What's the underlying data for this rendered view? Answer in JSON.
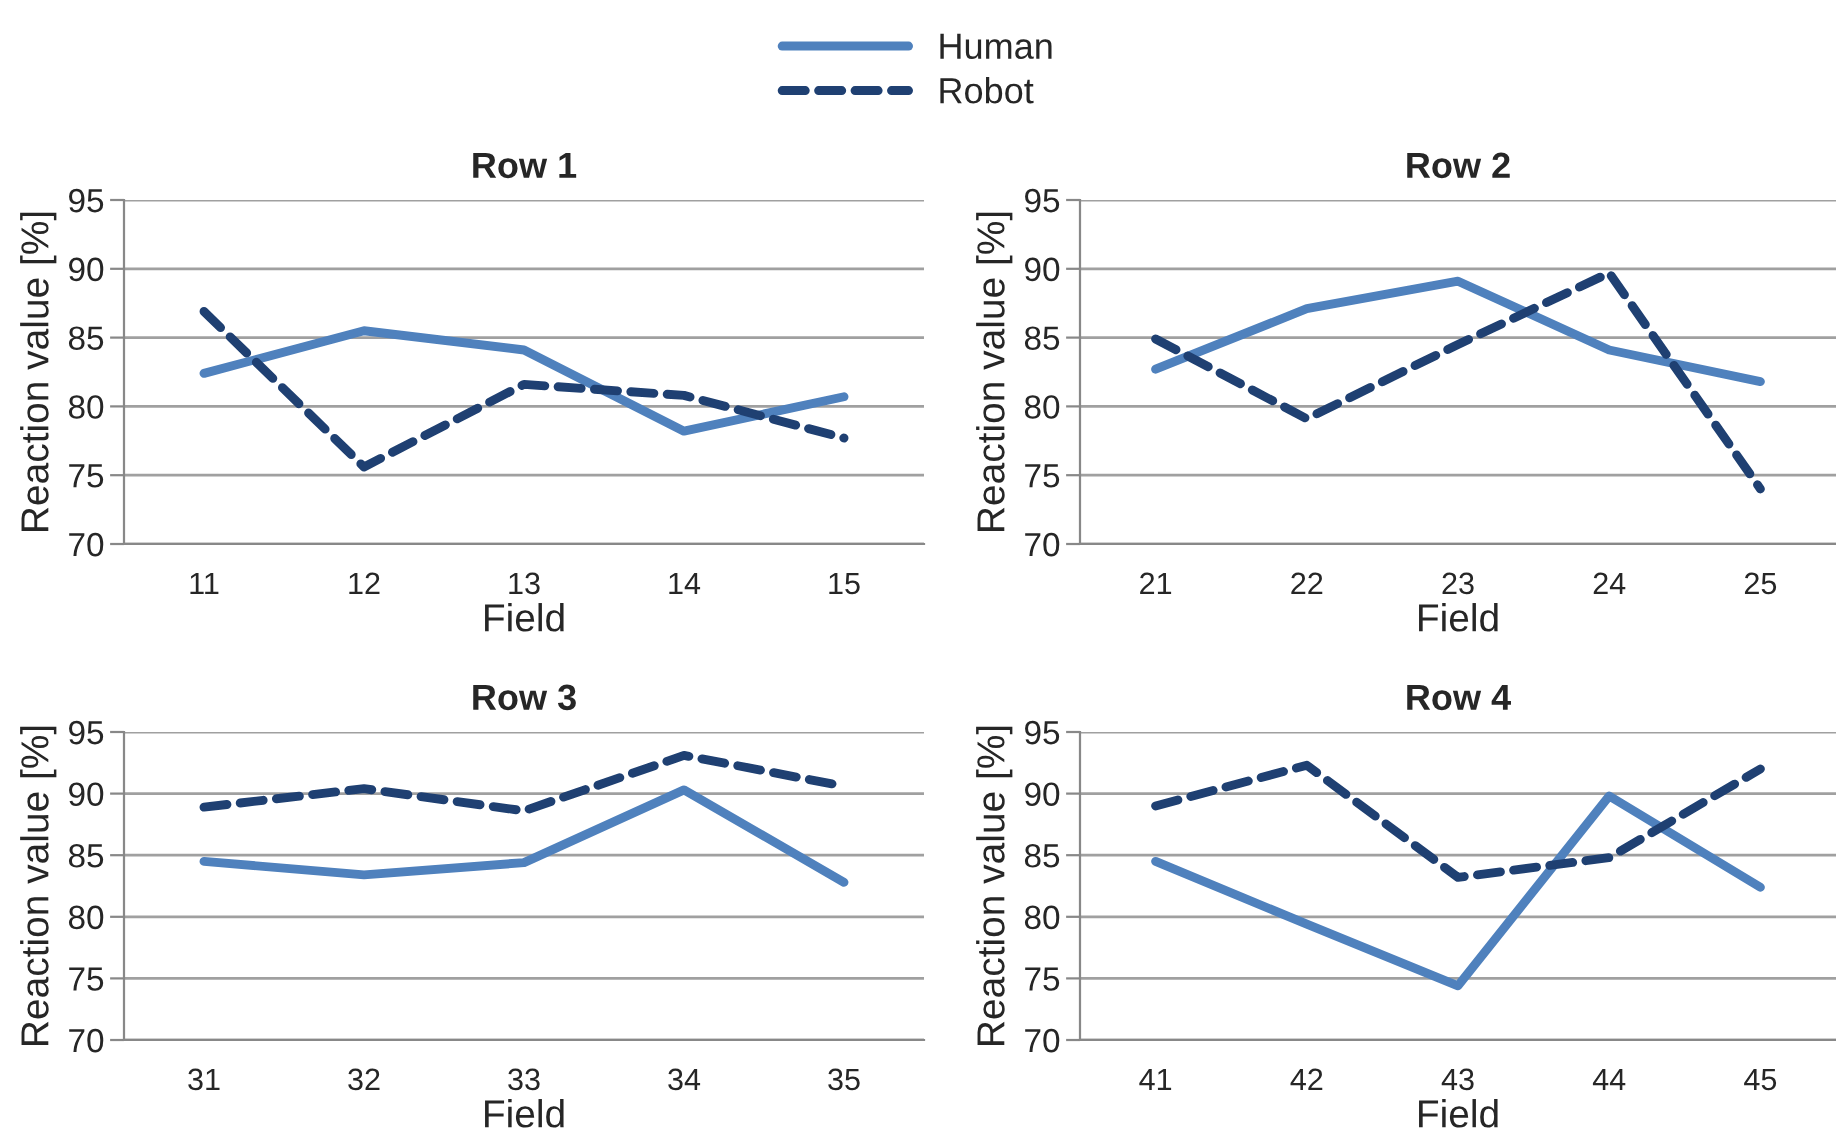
{
  "chart_data": [
    {
      "type": "line",
      "title": "Row 1",
      "xlabel": "Field",
      "ylabel": "Reaction value [%]",
      "categories": [
        "11",
        "12",
        "13",
        "14",
        "15"
      ],
      "series": [
        {
          "name": "Human",
          "color": "#4f81bd",
          "line_style": "solid",
          "values": [
            82.4,
            85.5,
            84.1,
            78.2,
            80.7
          ]
        },
        {
          "name": "Robot",
          "color": "#1f4072",
          "line_style": "dashed",
          "values": [
            86.9,
            75.6,
            81.6,
            80.8,
            77.7
          ]
        }
      ],
      "ylim": [
        70,
        95
      ],
      "yticks": [
        70,
        75,
        80,
        85,
        90,
        95
      ],
      "grid": "y",
      "legend": "top",
      "marker": "none"
    },
    {
      "type": "line",
      "title": "Row 2",
      "xlabel": "Field",
      "ylabel": "Reaction value [%]",
      "categories": [
        "21",
        "22",
        "23",
        "24",
        "25"
      ],
      "series": [
        {
          "color": "#4f81bd",
          "line_style": "solid",
          "values": [
            82.7,
            87.1,
            89.1,
            84.1,
            81.8
          ]
        },
        {
          "color": "#1f4072",
          "line_style": "dashed",
          "values": [
            84.9,
            79.1,
            84.5,
            89.7,
            74.0
          ]
        }
      ],
      "ylim": [
        70,
        95
      ],
      "yticks": [
        70,
        75,
        80,
        85,
        90,
        95
      ],
      "grid": "y",
      "marker": "none"
    },
    {
      "type": "line",
      "title": "Row 3",
      "xlabel": "Field",
      "ylabel": "Reaction value [%]",
      "categories": [
        "31",
        "32",
        "33",
        "34",
        "35"
      ],
      "series": [
        {
          "color": "#4f81bd",
          "line_style": "solid",
          "values": [
            84.5,
            83.4,
            84.4,
            90.3,
            82.8
          ]
        },
        {
          "color": "#1f4072",
          "line_style": "dashed",
          "values": [
            88.9,
            90.4,
            88.6,
            93.1,
            90.6
          ]
        }
      ],
      "ylim": [
        70,
        95
      ],
      "yticks": [
        70,
        75,
        80,
        85,
        90,
        95
      ],
      "grid": "y",
      "marker": "none"
    },
    {
      "type": "line",
      "title": "Row 4",
      "xlabel": "Field",
      "ylabel": "Reaction value [%]",
      "categories": [
        "41",
        "42",
        "43",
        "44",
        "45"
      ],
      "series": [
        {
          "color": "#4f81bd",
          "line_style": "solid",
          "values": [
            84.5,
            79.4,
            74.4,
            89.8,
            82.4
          ]
        },
        {
          "color": "#1f4072",
          "line_style": "dashed",
          "values": [
            89.0,
            92.3,
            83.2,
            84.8,
            92.0
          ]
        }
      ],
      "ylim": [
        70,
        95
      ],
      "yticks": [
        70,
        75,
        80,
        85,
        90,
        95
      ],
      "grid": "y",
      "marker": "none"
    }
  ]
}
